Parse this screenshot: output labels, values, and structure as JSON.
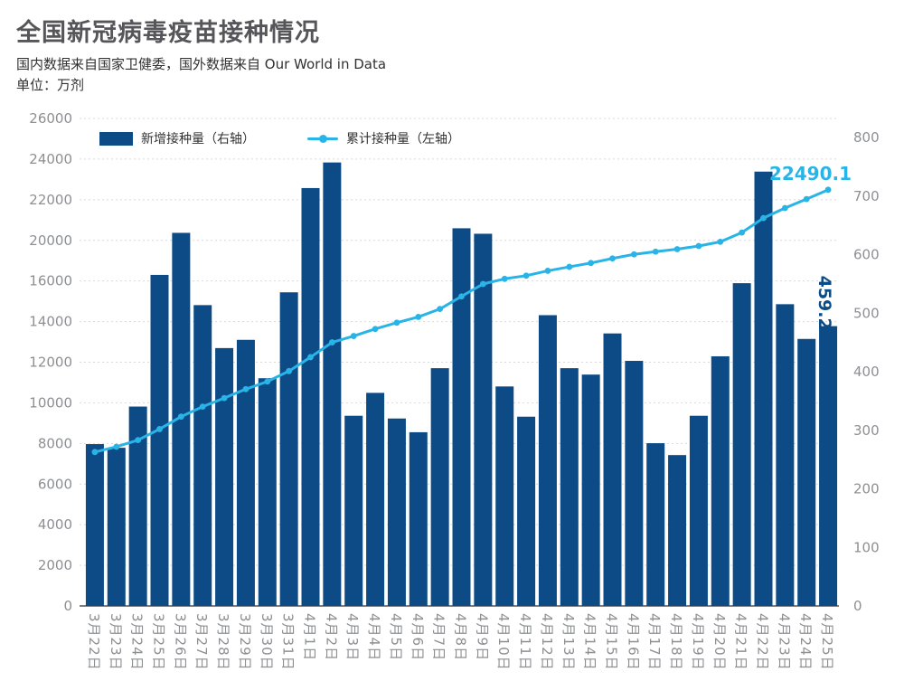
{
  "header": {
    "title": "全国新冠病毒疫苗接种情况",
    "source_note": "国内数据来自国家卫健委，国外数据来自 Our World in Data",
    "unit_note": "单位：万剂"
  },
  "legend": {
    "bars_label": "新增接种量（右轴）",
    "line_label": "累计接种量（左轴）"
  },
  "colors": {
    "bar": "#0d4b87",
    "line": "#29b4e8",
    "axis_text": "#8d8f92",
    "grid": "#d9d9d9",
    "baseline": "#7c7d80",
    "title_text": "#56565a"
  },
  "chart_data": {
    "type": "bar",
    "subtype": "combo-bar-line-dual-axis",
    "categories": [
      "3月22日",
      "3月23日",
      "3月24日",
      "3月25日",
      "3月26日",
      "3月27日",
      "3月28日",
      "3月29日",
      "3月30日",
      "3月31日",
      "4月1日",
      "4月2日",
      "4月3日",
      "4月4日",
      "4月5日",
      "4月6日",
      "4月7日",
      "4月8日",
      "4月9日",
      "4月10日",
      "4月11日",
      "4月12日",
      "4月13日",
      "4月14日",
      "4月15日",
      "4月16日",
      "4月17日",
      "4月18日",
      "4月19日",
      "4月20日",
      "4月21日",
      "4月22日",
      "4月23日",
      "4月24日",
      "4月25日"
    ],
    "series": [
      {
        "name": "新增接种量（右轴）",
        "type": "bar",
        "axis": "right",
        "values": [
          265.6,
          259.6,
          327.2,
          543.3,
          612.3,
          493.7,
          423.2,
          436.7,
          373.7,
          514.7,
          685.8,
          727.8,
          312.1,
          349.7,
          307.6,
          285.1,
          390.2,
          619.8,
          610.8,
          360.2,
          310.6,
          477.2,
          390.2,
          379.7,
          447.2,
          402.2,
          267.1,
          247.6,
          312.1,
          409.7,
          529.7,
          712.8,
          495.2,
          438.2,
          459.2
        ]
      },
      {
        "name": "累计接种量（左轴）",
        "type": "line",
        "axis": "left",
        "values": [
          7577.9,
          7837.5,
          8164.7,
          8708.0,
          9320.3,
          9814.0,
          10237.2,
          10673.9,
          11047.6,
          11562.3,
          12248.1,
          12975.9,
          13288.0,
          13637.7,
          13945.3,
          14230.4,
          14620.6,
          15240.4,
          15851.2,
          16211.4,
          16522.0,
          16999.2,
          17389.4,
          17769.1,
          18216.3,
          18618.5,
          18885.6,
          19133.2,
          19445.3,
          19855.0,
          20384.7,
          21097.5,
          21592.7,
          22030.9,
          22490.1
        ]
      }
    ],
    "left_axis": {
      "labels_top_to_bottom": [
        26000,
        24000,
        22000,
        20000,
        16000,
        14000,
        12000,
        10000,
        8000,
        6000,
        4000,
        2000,
        0
      ],
      "note": "labels as printed on chart (18000 tick label absent)"
    },
    "right_axis": {
      "labels_top_to_bottom": [
        800,
        700,
        600,
        500,
        400,
        300,
        200,
        100,
        0
      ],
      "range": [
        0,
        800
      ]
    },
    "annotations": {
      "line_end_label": "22490.1",
      "last_bar_label": "459.2"
    },
    "grid": "dotted horizontal gridlines, solid baseline",
    "legend_position": "top-left inside plot",
    "title": "全国新冠病毒疫苗接种情况",
    "xlabel": "",
    "ylabel_unit": "万剂"
  }
}
